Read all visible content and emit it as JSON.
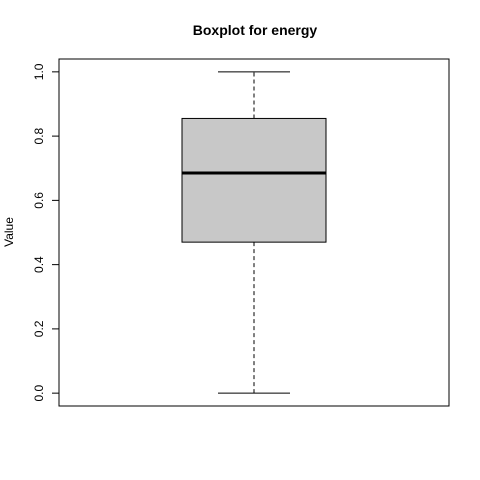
{
  "chart_data": {
    "type": "boxplot",
    "title": "Boxplot for energy",
    "xlabel": "",
    "ylabel": "Value",
    "ylim": [
      -0.04,
      1.04
    ],
    "yticks": [
      0.0,
      0.2,
      0.4,
      0.6,
      0.8,
      1.0
    ],
    "ytick_labels": [
      "0.0",
      "0.2",
      "0.4",
      "0.6",
      "0.8",
      "1.0"
    ],
    "grid": false,
    "box": {
      "whisker_low": 0.0,
      "q1": 0.47,
      "median": 0.685,
      "q3": 0.855,
      "whisker_high": 1.0
    },
    "colors": {
      "box_fill": "#c8c8c8",
      "stroke": "#000000"
    }
  }
}
